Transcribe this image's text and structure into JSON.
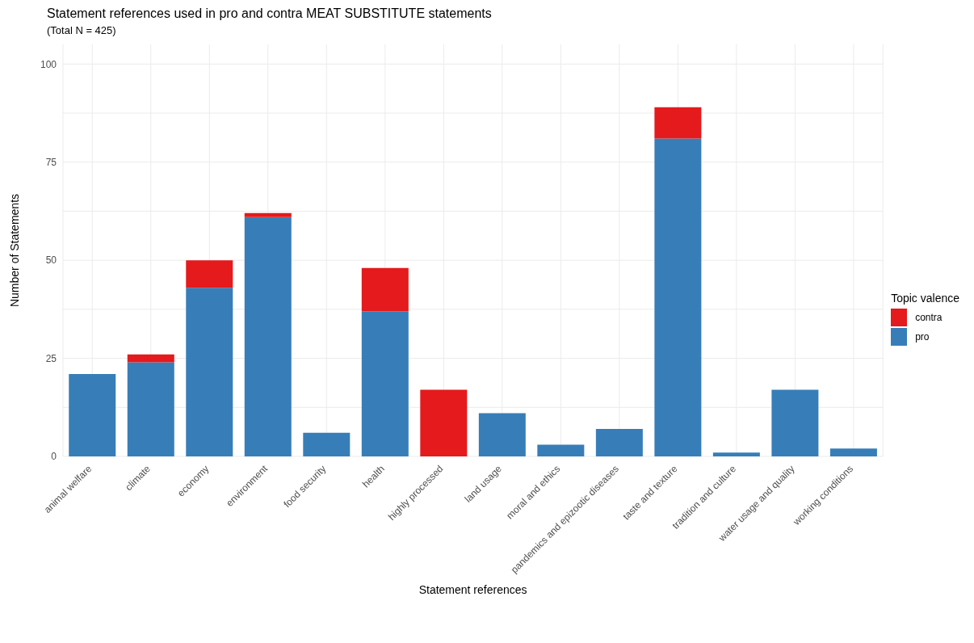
{
  "chart_data": {
    "type": "bar",
    "title": "Statement references used in pro and contra MEAT SUBSTITUTE statements",
    "subtitle": "(Total N = 425)",
    "xlabel": "Statement references",
    "ylabel": "Number of Statements",
    "legend_title": "Topic valence",
    "categories": [
      "animal welfare",
      "climate",
      "economy",
      "environment",
      "food security",
      "health",
      "highly processed",
      "land usage",
      "moral and ethics",
      "pandemics and epizootic diseases",
      "taste and texture",
      "tradition and culture",
      "water usage and quality",
      "working conditions"
    ],
    "series": [
      {
        "name": "pro",
        "color": "#377eb8",
        "values": [
          21,
          24,
          43,
          61,
          6,
          37,
          0,
          11,
          3,
          7,
          81,
          1,
          17,
          2
        ]
      },
      {
        "name": "contra",
        "color": "#e41a1c",
        "values": [
          0,
          2,
          7,
          1,
          0,
          11,
          17,
          0,
          0,
          0,
          8,
          0,
          0,
          0
        ]
      }
    ],
    "stacked": true,
    "ylim": [
      0,
      105
    ],
    "yticks": [
      0,
      {
        "value": 12.5,
        "label": null
      },
      25,
      {
        "value": 37.5,
        "label": null
      },
      50,
      {
        "value": 62.5,
        "label": null
      },
      75,
      {
        "value": 87.5,
        "label": null
      },
      100
    ],
    "grid": true,
    "legend": "right"
  }
}
